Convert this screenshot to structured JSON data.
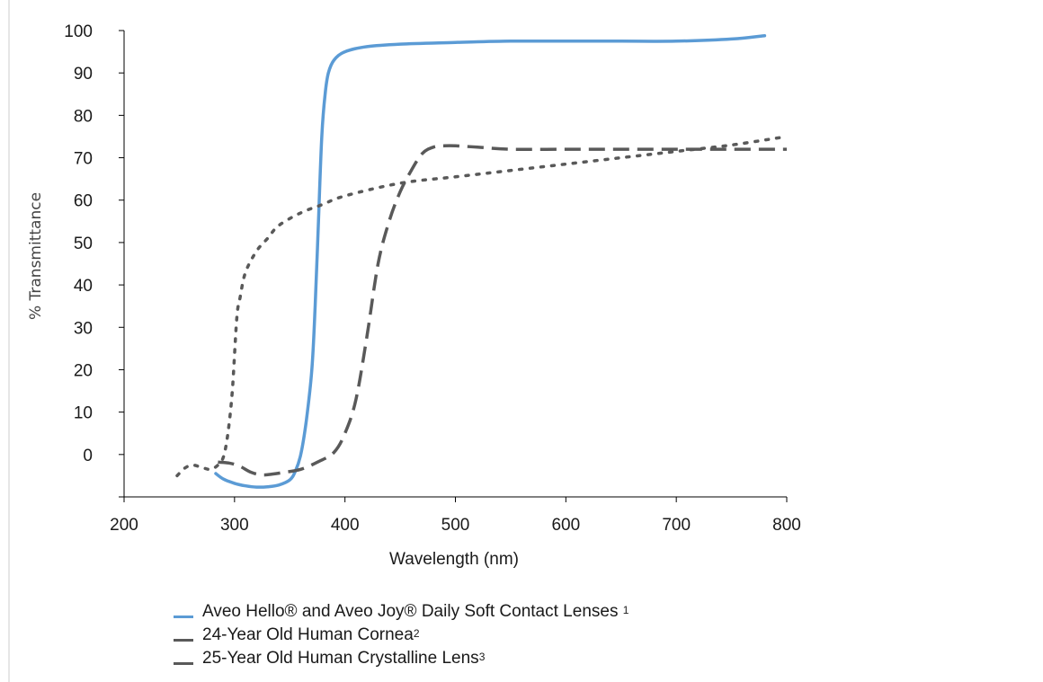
{
  "colors": {
    "lens": "#5b9bd5",
    "cornea": "#595959",
    "crystalline": "#595959",
    "axis": "#000000"
  },
  "chart_data": {
    "type": "line",
    "xlabel": "Wavelength (nm)",
    "ylabel": "% Transmittance",
    "xlim": [
      200,
      800
    ],
    "ylim": [
      -10,
      100
    ],
    "x_ticks": [
      200,
      300,
      400,
      500,
      600,
      700,
      800
    ],
    "y_ticks": [
      0,
      10,
      20,
      30,
      40,
      50,
      60,
      70,
      80,
      90,
      100
    ],
    "grid": false,
    "legend_position": "bottom",
    "series": [
      {
        "name": "Aveo Hello® and Aveo Joy® Daily Soft Contact Lenses",
        "sup": "1",
        "style": "solid",
        "x": [
          283,
          290,
          300,
          310,
          320,
          330,
          340,
          350,
          355,
          360,
          365,
          370,
          373,
          376,
          379,
          382,
          385,
          390,
          400,
          420,
          450,
          500,
          550,
          600,
          650,
          700,
          750,
          780
        ],
        "y": [
          -4.5,
          -5.8,
          -6.8,
          -7.4,
          -7.7,
          -7.6,
          -7.2,
          -6.0,
          -4.0,
          0,
          8,
          20,
          35,
          55,
          75,
          85,
          90,
          93,
          95,
          96.2,
          96.8,
          97.2,
          97.5,
          97.5,
          97.5,
          97.5,
          98.0,
          98.8
        ]
      },
      {
        "name": "24-Year Old Human Cornea",
        "sup": "2",
        "style": "dash",
        "x": [
          285,
          295,
          305,
          315,
          325,
          335,
          345,
          360,
          375,
          390,
          400,
          410,
          420,
          430,
          440,
          450,
          460,
          470,
          480,
          490,
          500,
          520,
          550,
          600,
          650,
          700,
          750,
          800
        ],
        "y": [
          -1.8,
          -2.0,
          -2.8,
          -4.2,
          -4.8,
          -4.6,
          -4.2,
          -3.5,
          -1.8,
          0.5,
          5,
          13,
          28,
          45,
          55,
          62,
          67,
          71,
          72.5,
          72.8,
          72.8,
          72.5,
          72,
          72,
          72,
          72,
          72,
          72
        ]
      },
      {
        "name": "25-Year Old Human Crystalline Lens",
        "sup": "3",
        "style": "dot",
        "x": [
          248,
          255,
          262,
          270,
          278,
          285,
          290,
          294,
          298,
          302,
          305,
          310,
          320,
          330,
          340,
          360,
          380,
          400,
          450,
          500,
          550,
          600,
          650,
          700,
          750,
          800
        ],
        "y": [
          -5.0,
          -3.2,
          -2.5,
          -3.0,
          -3.5,
          -2.5,
          -0.5,
          5,
          15,
          32,
          37,
          43,
          48,
          51,
          54,
          57,
          59,
          61,
          64,
          65.5,
          67,
          68.5,
          70,
          71.5,
          73,
          75
        ]
      }
    ]
  }
}
